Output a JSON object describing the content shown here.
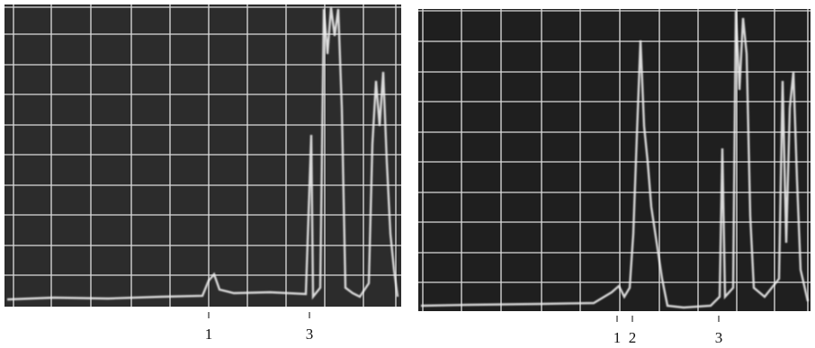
{
  "screens": [
    {
      "markers": [
        {
          "label": "1"
        },
        {
          "label": "3"
        }
      ]
    },
    {
      "markers": [
        {
          "label": "1"
        },
        {
          "label": "2"
        },
        {
          "label": "3"
        }
      ]
    }
  ]
}
